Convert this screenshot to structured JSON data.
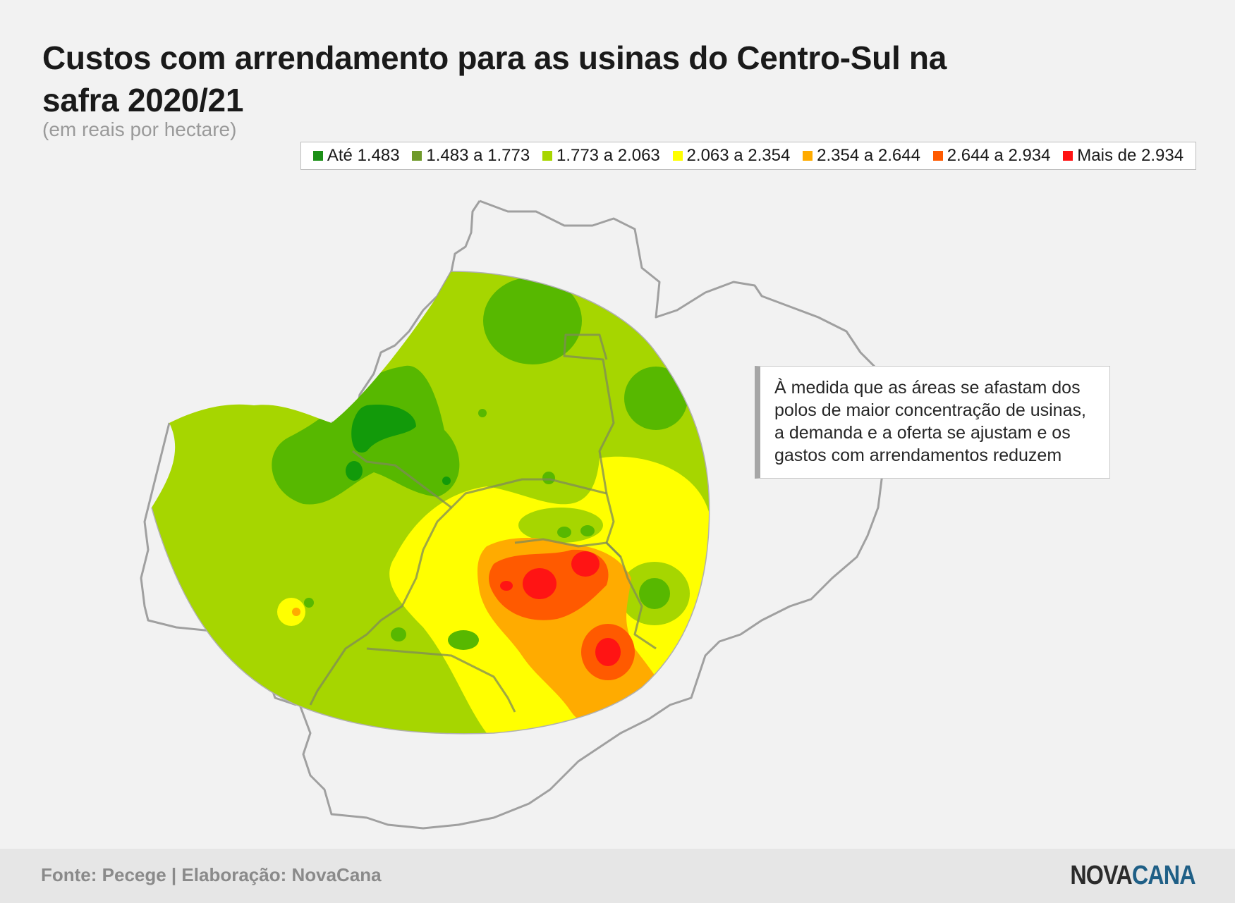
{
  "header": {
    "title": "Custos com arrendamento para as usinas do Centro-Sul na safra 2020/21",
    "subtitle": "(em reais por hectare)"
  },
  "legend": [
    {
      "label": "Até 1.483",
      "color": "#1b8f16"
    },
    {
      "label": "1.483 a 1.773",
      "color": "#6f9a2b"
    },
    {
      "label": "1.773 a 2.063",
      "color": "#a8d600"
    },
    {
      "label": "2.063 a 2.354",
      "color": "#ffff00"
    },
    {
      "label": "2.354 a 2.644",
      "color": "#ffab00"
    },
    {
      "label": "2.644 a 2.934",
      "color": "#ff5a00"
    },
    {
      "label": "Mais de 2.934",
      "color": "#ff1414"
    }
  ],
  "map": {
    "zone_colors": {
      "base": "#a6d600",
      "mid_green": "#57b800",
      "dark_green": "#129a0a",
      "yellow": "#ffff00",
      "orange": "#ffab00",
      "dark_orange": "#ff5a00",
      "red": "#ff1414",
      "border": "#a0a0a0"
    }
  },
  "annotation": {
    "text": "À medida que as áreas se afastam dos polos de maior concentração de usinas, a demanda e a oferta se ajustam e os gastos com arrendamentos reduzem"
  },
  "footer": {
    "source": "Fonte: Pecege | Elaboração: NovaCana",
    "logo_part1": "NOVA",
    "logo_part2": "CANA"
  }
}
